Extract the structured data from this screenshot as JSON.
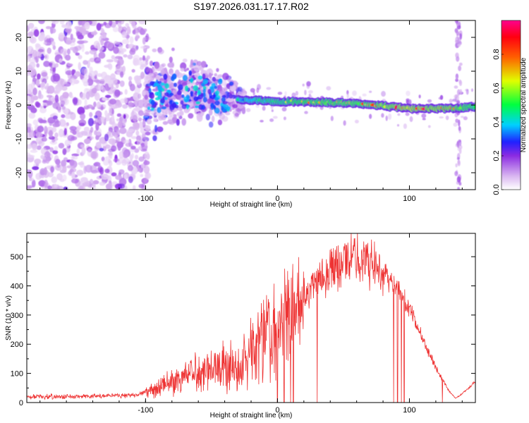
{
  "title": "S197.2026.031.17.17.R02",
  "chart_data": [
    {
      "type": "heatmap",
      "title": "S197.2026.031.17.17.R02",
      "xlabel": "Height of straight line (km)",
      "ylabel": "Frequency (Hz)",
      "xlim": [
        -190,
        150
      ],
      "ylim": [
        -25,
        25
      ],
      "xticks": [
        -100,
        0,
        100
      ],
      "yticks": [
        -20,
        -10,
        0,
        10,
        20
      ],
      "colorbar": {
        "label": "Normalized spectral amplitude",
        "range": [
          0.0,
          1.0
        ],
        "ticks": [
          "0.0",
          "0.2",
          "0.4",
          "0.6",
          "0.8"
        ],
        "stops": [
          {
            "v": 0.0,
            "color": "#ffffff"
          },
          {
            "v": 0.08,
            "color": "#d8b4f0"
          },
          {
            "v": 0.2,
            "color": "#8a2be2"
          },
          {
            "v": 0.28,
            "color": "#2020ff"
          },
          {
            "v": 0.38,
            "color": "#00d0ff"
          },
          {
            "v": 0.5,
            "color": "#00ff40"
          },
          {
            "v": 0.64,
            "color": "#e0ff00"
          },
          {
            "v": 0.78,
            "color": "#ff6000"
          },
          {
            "v": 0.9,
            "color": "#ff0010"
          },
          {
            "v": 1.0,
            "color": "#ff0090"
          }
        ]
      },
      "ridge": {
        "description": "Dominant frequency trace",
        "x": [
          -100,
          -60,
          -40,
          -20,
          0,
          20,
          60,
          100,
          130,
          150
        ],
        "y": [
          3,
          4,
          2,
          1.5,
          1,
          1,
          0.5,
          -1,
          -1,
          -0.5
        ],
        "amplitude": [
          0.35,
          0.35,
          0.4,
          0.45,
          0.55,
          0.7,
          0.7,
          0.9,
          0.8,
          0.6
        ]
      }
    },
    {
      "type": "line",
      "xlabel": "Height of straight line (km)",
      "ylabel": "SNR (10 * v/v)",
      "xlim": [
        -190,
        150
      ],
      "ylim": [
        0,
        580
      ],
      "xticks": [
        -100,
        0,
        100
      ],
      "yticks": [
        0,
        100,
        200,
        300,
        400,
        500
      ],
      "color": "#ee3333",
      "envelope": {
        "x": [
          -190,
          -150,
          -110,
          -95,
          -80,
          -60,
          -40,
          -30,
          -20,
          -10,
          0,
          10,
          20,
          30,
          40,
          50,
          60,
          70,
          80,
          90,
          100,
          110,
          120,
          130,
          135,
          140,
          150
        ],
        "y": [
          20,
          20,
          25,
          40,
          70,
          110,
          130,
          120,
          200,
          260,
          290,
          330,
          380,
          420,
          460,
          480,
          500,
          480,
          450,
          400,
          320,
          220,
          120,
          40,
          15,
          30,
          70
        ]
      },
      "dropouts": [
        0,
        5,
        10,
        12,
        30,
        88,
        91,
        94,
        96,
        125
      ]
    }
  ]
}
